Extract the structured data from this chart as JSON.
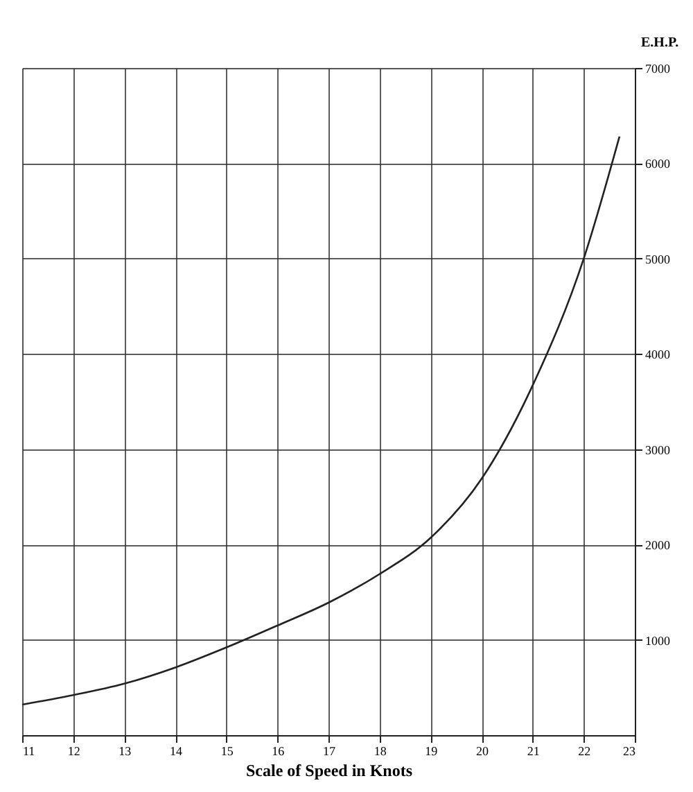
{
  "chart_data": {
    "type": "line",
    "xlabel": "Scale of Speed in Knots",
    "ylabel": "E.H.P.",
    "x": [
      11,
      12,
      13,
      14,
      15,
      16,
      17,
      18,
      19,
      20,
      21,
      22,
      22.7
    ],
    "series": [
      {
        "color": "#222222",
        "values": [
          320,
          420,
          540,
          710,
          920,
          1150,
          1390,
          1690,
          2070,
          2690,
          3670,
          5000,
          6280
        ]
      }
    ],
    "xlim": [
      11,
      23
    ],
    "xticks": [
      11,
      12,
      13,
      14,
      15,
      16,
      17,
      18,
      19,
      20,
      21,
      22,
      23
    ],
    "ylim": [
      0,
      7000
    ],
    "yticks": [
      1000,
      2000,
      3000,
      4000,
      5000,
      6000,
      7000
    ],
    "grid": true,
    "marker": "none",
    "line_style": "solid"
  }
}
